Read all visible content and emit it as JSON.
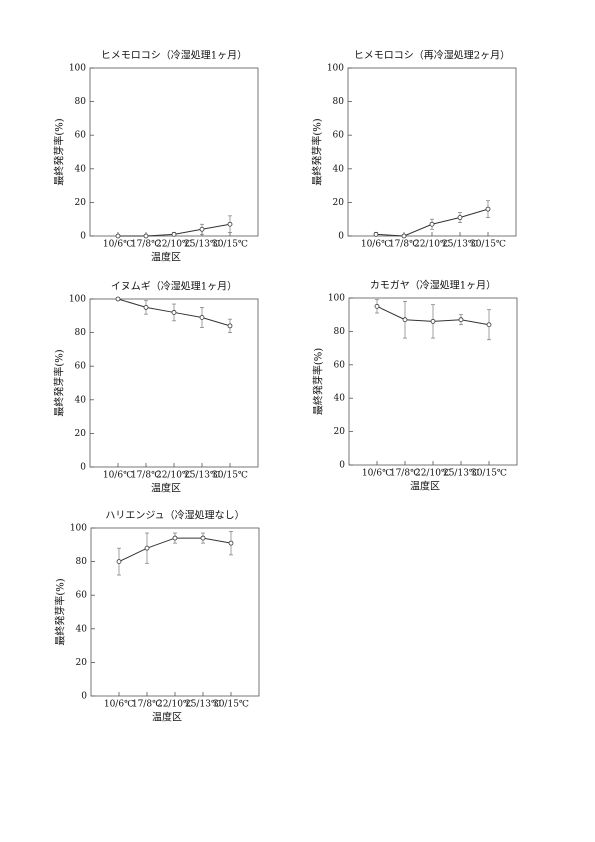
{
  "chart_data": [
    {
      "type": "line",
      "title": "ヒメモロコシ（冷湿処理1ヶ月）",
      "y_label": "最終発芽率(%)",
      "x_label": "温度区",
      "categories": [
        "10/6℃",
        "17/8℃",
        "22/10℃",
        "25/13℃",
        "30/15℃"
      ],
      "ylim": [
        0,
        100
      ],
      "yticks": [
        0,
        20,
        40,
        60,
        80,
        100
      ],
      "series": [
        {
          "color": "#333333",
          "values": [
            0,
            0,
            1,
            4,
            7
          ],
          "errors": [
            0,
            0,
            1,
            3,
            5
          ]
        }
      ]
    },
    {
      "type": "line",
      "title": "ヒメモロコシ（再冷湿処理2ヶ月）",
      "y_label": "最終発芽率(%)",
      "categories": [
        "10/6℃",
        "17/8℃",
        "22/10℃",
        "25/13℃",
        "30/15℃"
      ],
      "ylim": [
        0,
        100
      ],
      "yticks": [
        0,
        20,
        40,
        60,
        80,
        100
      ],
      "series": [
        {
          "color": "#333333",
          "values": [
            1,
            0,
            7,
            11,
            16
          ],
          "errors": [
            1,
            0,
            3,
            3,
            5
          ]
        }
      ]
    },
    {
      "type": "line",
      "title": "イヌムギ（冷湿処理1ヶ月）",
      "y_label": "最終発芽率(%)",
      "x_label": "温度区",
      "categories": [
        "10/6℃",
        "17/8℃",
        "22/10℃",
        "25/13℃",
        "30/15℃"
      ],
      "ylim": [
        0,
        100
      ],
      "yticks": [
        0,
        20,
        40,
        60,
        80,
        100
      ],
      "series": [
        {
          "color": "#333333",
          "values": [
            100,
            95,
            92,
            89,
            84
          ],
          "errors": [
            0,
            4,
            5,
            6,
            4
          ]
        }
      ]
    },
    {
      "type": "line",
      "title": "カモガヤ（冷湿処理1ヶ月）",
      "y_label": "最終発芽率(%)",
      "x_label": "温度区",
      "categories": [
        "10/6℃",
        "17/8℃",
        "22/10℃",
        "25/13℃",
        "30/15℃"
      ],
      "ylim": [
        0,
        100
      ],
      "yticks": [
        0,
        20,
        40,
        60,
        80,
        100
      ],
      "series": [
        {
          "color": "#333333",
          "values": [
            95,
            87,
            86,
            87,
            84
          ],
          "errors": [
            4,
            11,
            10,
            3,
            9
          ]
        }
      ]
    },
    {
      "type": "line",
      "title": "ハリエンジュ（冷湿処理なし）",
      "y_label": "最終発芽率(%)",
      "x_label": "温度区",
      "categories": [
        "10/6℃",
        "17/8℃",
        "22/10℃",
        "25/13℃",
        "30/15℃"
      ],
      "ylim": [
        0,
        100
      ],
      "yticks": [
        0,
        20,
        40,
        60,
        80,
        100
      ],
      "series": [
        {
          "color": "#333333",
          "values": [
            80,
            88,
            94,
            94,
            91
          ],
          "errors": [
            8,
            9,
            3,
            3,
            7
          ]
        }
      ]
    }
  ]
}
